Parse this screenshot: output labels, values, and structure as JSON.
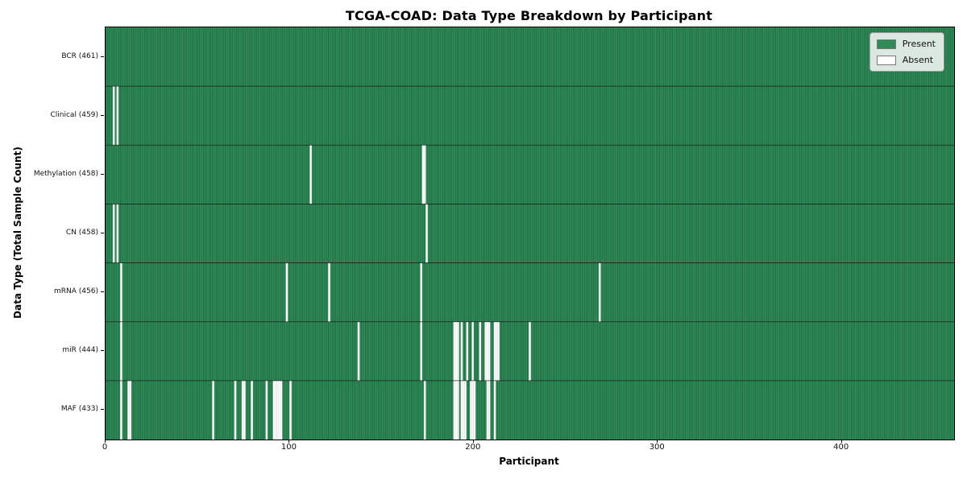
{
  "chart_data": {
    "type": "heatmap",
    "title": "TCGA-COAD: Data Type Breakdown by Participant",
    "xlabel": "Participant",
    "ylabel": "Data Type (Total Sample Count)",
    "n_participants": 461,
    "x_ticks": [
      0,
      100,
      200,
      300,
      400
    ],
    "xlim": [
      0,
      461
    ],
    "grid": false,
    "colors": {
      "present": "#2e8b57",
      "absent": "#ffffff",
      "cell_edge": "#123d26",
      "absent_edge": "#c9c9c9",
      "row_divider": "#151515",
      "axis": "#000000"
    },
    "legend": {
      "position": "upper right",
      "entries": [
        {
          "label": "Present",
          "color": "#2e8b57"
        },
        {
          "label": "Absent",
          "color": "#ffffff"
        }
      ]
    },
    "rows": [
      {
        "label": "BCR (461)",
        "data_type": "BCR",
        "present_count": 461,
        "absent_indices": []
      },
      {
        "label": "Clinical (459)",
        "data_type": "Clinical",
        "present_count": 459,
        "absent_indices": [
          4,
          6
        ]
      },
      {
        "label": "Methylation (458)",
        "data_type": "Methylation",
        "present_count": 458,
        "absent_indices": [
          111,
          172,
          173
        ]
      },
      {
        "label": "CN (458)",
        "data_type": "CN",
        "present_count": 458,
        "absent_indices": [
          4,
          6,
          174
        ]
      },
      {
        "label": "mRNA (456)",
        "data_type": "mRNA",
        "present_count": 456,
        "absent_indices": [
          8,
          98,
          121,
          171,
          268
        ]
      },
      {
        "label": "miR (444)",
        "data_type": "miR",
        "present_count": 444,
        "absent_indices": [
          8,
          137,
          171,
          189,
          190,
          191,
          193,
          196,
          199,
          203,
          206,
          207,
          208,
          211,
          212,
          213,
          230
        ]
      },
      {
        "label": "MAF (433)",
        "data_type": "MAF",
        "present_count": 433,
        "absent_indices": [
          8,
          12,
          13,
          58,
          70,
          74,
          75,
          79,
          87,
          91,
          92,
          93,
          94,
          95,
          100,
          173,
          189,
          190,
          191,
          193,
          194,
          195,
          198,
          199,
          200,
          207,
          208,
          211
        ]
      }
    ]
  }
}
